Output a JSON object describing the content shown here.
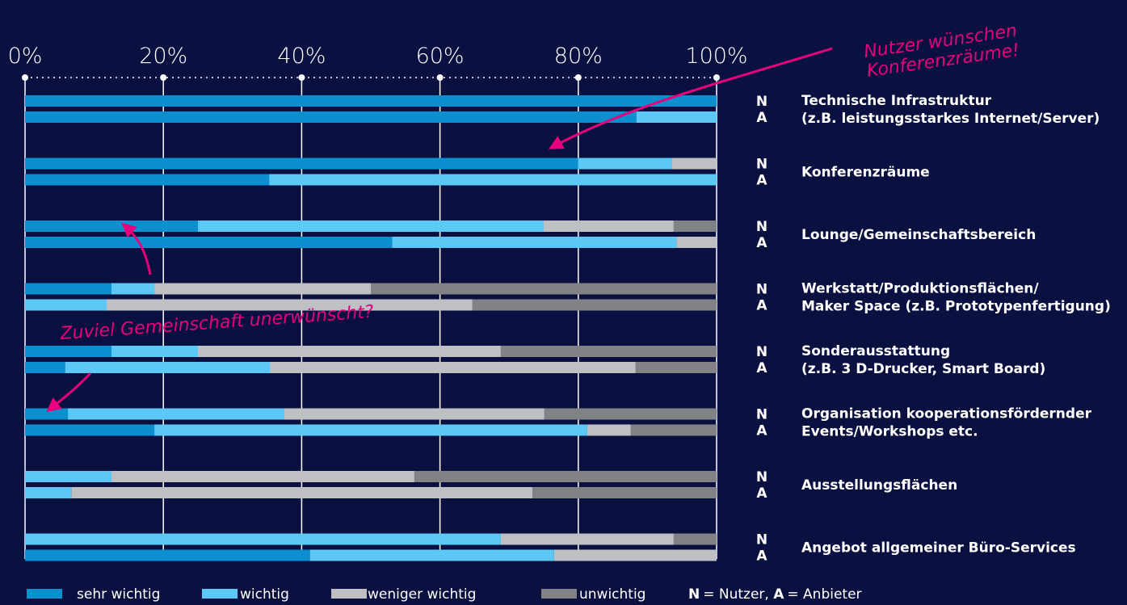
{
  "chart_data": {
    "type": "stacked-barh",
    "xlim": [
      0,
      100
    ],
    "xticks": [
      {
        "value": 0,
        "label": "0%"
      },
      {
        "value": 20,
        "label": "20%"
      },
      {
        "value": 40,
        "label": "40%"
      },
      {
        "value": 60,
        "label": "60%"
      },
      {
        "value": 80,
        "label": "80%"
      },
      {
        "value": 100,
        "label": "100%"
      }
    ],
    "grid": true,
    "groups": [
      "N",
      "A"
    ],
    "categories": [
      [
        "Technische Infrastruktur",
        "(z.B. leistungsstarkes Internet/Server)"
      ],
      [
        "Konferenzräume"
      ],
      [
        "Lounge/Gemeinschaftsbereich"
      ],
      [
        "Werkstatt/Produktionsflächen/",
        "Maker Space (z.B. Prototypenfertigung)"
      ],
      [
        "Sonderausstattung",
        "(z.B. 3 D-Drucker, Smart Board)"
      ],
      [
        "Organisation kooperationsfördernder",
        "Events/Workshops etc."
      ],
      [
        "Ausstellungsflächen"
      ],
      [
        "Angebot allgemeiner Büro-Services"
      ]
    ],
    "series": [
      {
        "name": "sehr wichtig",
        "color": "#0b8fcf",
        "values": [
          [
            100,
            88.4
          ],
          [
            80,
            35.3
          ],
          [
            25,
            53.1
          ],
          [
            12.5,
            0
          ],
          [
            12.5,
            5.8
          ],
          [
            6.2,
            18.7
          ],
          [
            0,
            0
          ],
          [
            0,
            41.2
          ]
        ]
      },
      {
        "name": "wichtig",
        "color": "#5bc8f5",
        "values": [
          [
            0,
            11.6
          ],
          [
            13.5,
            64.7
          ],
          [
            50,
            41.1
          ],
          [
            6.2,
            11.8
          ],
          [
            12.5,
            29.6
          ],
          [
            31.3,
            62.6
          ],
          [
            12.5,
            6.7
          ],
          [
            68.8,
            35.3
          ]
        ]
      },
      {
        "name": "weniger wichtig",
        "color": "#bfc0c4",
        "values": [
          [
            0,
            0
          ],
          [
            6.5,
            0
          ],
          [
            18.8,
            5.8
          ],
          [
            31.3,
            52.9
          ],
          [
            43.8,
            52.9
          ],
          [
            37.6,
            6.3
          ],
          [
            43.8,
            66.7
          ],
          [
            25,
            23.5
          ]
        ]
      },
      {
        "name": "unwichtig",
        "color": "#808285",
        "values": [
          [
            0,
            0
          ],
          [
            0,
            0
          ],
          [
            6.2,
            0
          ],
          [
            50,
            35.3
          ],
          [
            31.2,
            11.7
          ],
          [
            24.9,
            12.4
          ],
          [
            43.7,
            26.6
          ],
          [
            6.2,
            0
          ]
        ]
      }
    ],
    "legend_note": [
      "N",
      "= Nutzer, ",
      "A",
      "= Anbieter"
    ],
    "annotations": [
      [
        "Nutzer wünschen",
        "Konferenzräume!"
      ],
      "Zuviel Gemeinschaft unerwünscht?"
    ]
  }
}
